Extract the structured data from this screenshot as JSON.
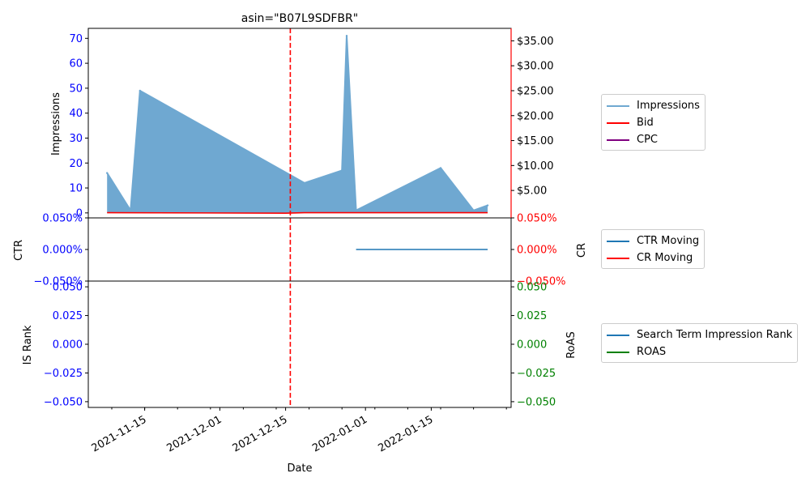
{
  "title": "asin=\"B07L9SDFBR\"",
  "colors": {
    "impressions": "#1f77b4",
    "impressions_fill": "#6fa8d1",
    "bid": "#ff0000",
    "cpc": "#800080",
    "ctr": "#1f77b4",
    "cr": "#ff0000",
    "rank": "#1f77b4",
    "roas": "#008000",
    "marker": "#ff0000"
  },
  "legends": {
    "top": [
      {
        "label": "Impressions",
        "color": "#6fa8d1"
      },
      {
        "label": "Bid",
        "color": "#ff0000"
      },
      {
        "label": "CPC",
        "color": "#800080"
      }
    ],
    "mid": [
      {
        "label": "CTR Moving",
        "color": "#1f77b4"
      },
      {
        "label": "CR Moving",
        "color": "#ff0000"
      }
    ],
    "bottom": [
      {
        "label": "Search Term Impression Rank",
        "color": "#1f77b4"
      },
      {
        "label": "ROAS",
        "color": "#008000"
      }
    ]
  },
  "chart_data": [
    {
      "type": "area",
      "title": "asin=\"B07L9SDFBR\"",
      "xlabel": "Date",
      "ylabel": "Impressions",
      "ylabel_right": "",
      "x_type": "date",
      "xlim": [
        "2021-11-03",
        "2022-02-01"
      ],
      "ylim": [
        -2,
        74
      ],
      "y_ticks": [
        "0",
        "10",
        "20",
        "30",
        "40",
        "50",
        "60",
        "70"
      ],
      "y_ticks_right": [
        "$5.00",
        "$10.00",
        "$15.00",
        "$20.00",
        "$25.00",
        "$30.00",
        "$35.00"
      ],
      "y_ticks_right_values": [
        5,
        10,
        15,
        20,
        25,
        30,
        35
      ],
      "ylim_right": [
        -0.5,
        37.5
      ],
      "series": [
        {
          "name": "Impressions",
          "axis": "left",
          "x": [
            "2021-11-07",
            "2021-11-12",
            "2021-11-14",
            "2021-12-19",
            "2021-12-27",
            "2021-12-28",
            "2021-12-30",
            "2022-01-17",
            "2022-01-24",
            "2022-01-27"
          ],
          "values": [
            16,
            1,
            49,
            12,
            17,
            71,
            1,
            18,
            1,
            3
          ]
        },
        {
          "name": "Bid",
          "axis": "right",
          "x": [
            "2021-11-07",
            "2021-12-15",
            "2021-12-19",
            "2022-01-27"
          ],
          "values": [
            0.55,
            0.45,
            0.55,
            0.55
          ]
        }
      ],
      "vline": "2021-12-16"
    },
    {
      "type": "line",
      "ylabel": "CTR",
      "ylabel_right": "CR",
      "ylim": [
        -0.05,
        0.05
      ],
      "y_ticks": [
        "0.050%",
        "0.000%",
        "−0.050%"
      ],
      "y_ticks_right": [
        "0.050%",
        "0.000%",
        "−0.050%"
      ],
      "series": [
        {
          "name": "CTR Moving",
          "x": [
            "2021-12-30",
            "2022-01-27"
          ],
          "values": [
            0,
            0
          ]
        }
      ],
      "vline": "2021-12-16"
    },
    {
      "type": "line",
      "ylabel": "IS Rank",
      "ylabel_right": "RoAS",
      "ylim": [
        -0.055,
        0.055
      ],
      "y_ticks": [
        "0.050",
        "0.025",
        "0.000",
        "−0.025",
        "−0.050"
      ],
      "y_ticks_right": [
        "0.050",
        "0.025",
        "0.000",
        "−0.025",
        "−0.050"
      ],
      "series": [],
      "vline": "2021-12-16",
      "x_ticks": [
        "2021-11-15",
        "2021-12-01",
        "2021-12-15",
        "2022-01-01",
        "2022-01-15"
      ]
    }
  ]
}
